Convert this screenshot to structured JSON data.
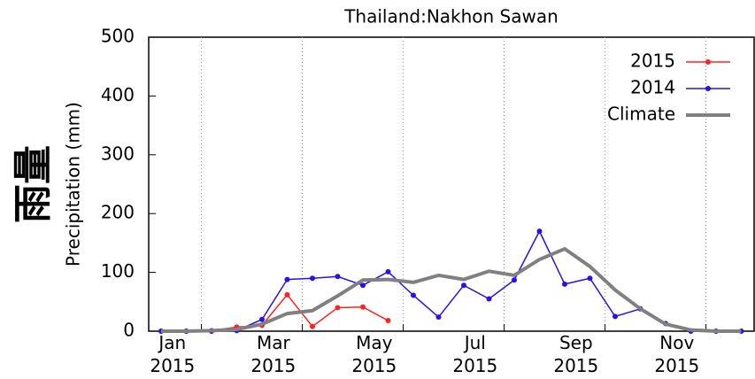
{
  "chart_data": {
    "type": "line",
    "title": "Thailand:Nakhon Sawan",
    "side_label": "雨量",
    "y_label": "Precipitation (mm)",
    "categories": [
      "Jan\n2015",
      null,
      null,
      null,
      "Mar\n2015",
      null,
      null,
      null,
      "May\n2015",
      null,
      null,
      null,
      "Jul\n2015",
      null,
      null,
      null,
      "Sep\n2015",
      null,
      null,
      null,
      "Nov\n2015",
      null,
      null,
      null
    ],
    "series": [
      {
        "name": "2015",
        "color": "#ff2020",
        "marker": true,
        "values": [
          0,
          0,
          1,
          7,
          10,
          62,
          8,
          40,
          41,
          18,
          null,
          null,
          null,
          null,
          null,
          null,
          null,
          null,
          null,
          null,
          null,
          null,
          null,
          null
        ]
      },
      {
        "name": "2014",
        "color": "#2a10e8",
        "marker": true,
        "values": [
          0,
          0,
          0,
          1,
          20,
          88,
          90,
          93,
          78,
          101,
          61,
          24,
          78,
          55,
          87,
          170,
          80,
          90,
          25,
          38,
          13,
          0,
          0,
          0
        ]
      },
      {
        "name": "Climate",
        "color": "#808080",
        "marker": false,
        "values": [
          0,
          0,
          1,
          3,
          12,
          30,
          35,
          60,
          87,
          88,
          83,
          95,
          88,
          102,
          95,
          122,
          140,
          110,
          70,
          38,
          12,
          2,
          0,
          0
        ]
      }
    ],
    "ylim": [
      0,
      500
    ],
    "yticks": [
      0,
      100,
      200,
      300,
      400,
      500
    ],
    "legend": "top-right",
    "grid": true
  }
}
